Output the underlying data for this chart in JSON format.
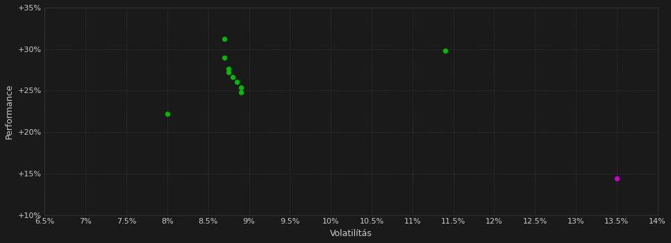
{
  "background_color": "#1a1a1a",
  "grid_color": "#3a3a3a",
  "text_color": "#cccccc",
  "green_color": "#00bb00",
  "magenta_color": "#cc00cc",
  "xlabel": "Volatilítás",
  "ylabel": "Performance",
  "xlim": [
    0.065,
    0.14
  ],
  "ylim": [
    0.1,
    0.35
  ],
  "xticks": [
    0.065,
    0.07,
    0.075,
    0.08,
    0.085,
    0.09,
    0.095,
    0.1,
    0.105,
    0.11,
    0.115,
    0.12,
    0.125,
    0.13,
    0.135,
    0.14
  ],
  "xtick_labels": [
    "6.5%",
    "7%",
    "7.5%",
    "8%",
    "8.5%",
    "9%",
    "9.5%",
    "10%",
    "10.5%",
    "11%",
    "11.5%",
    "12%",
    "12.5%",
    "13%",
    "13.5%",
    "14%"
  ],
  "yticks": [
    0.1,
    0.15,
    0.2,
    0.25,
    0.3,
    0.35
  ],
  "ytick_labels": [
    "+10%",
    "+15%",
    "+20%",
    "+25%",
    "+30%",
    "+35%"
  ],
  "green_points": [
    [
      0.08,
      0.222
    ],
    [
      0.087,
      0.312
    ],
    [
      0.087,
      0.29
    ],
    [
      0.0875,
      0.276
    ],
    [
      0.0875,
      0.272
    ],
    [
      0.088,
      0.266
    ],
    [
      0.0885,
      0.26
    ],
    [
      0.089,
      0.254
    ],
    [
      0.089,
      0.248
    ],
    [
      0.114,
      0.298
    ]
  ],
  "magenta_points": [
    [
      0.135,
      0.144
    ]
  ],
  "marker_size": 28
}
